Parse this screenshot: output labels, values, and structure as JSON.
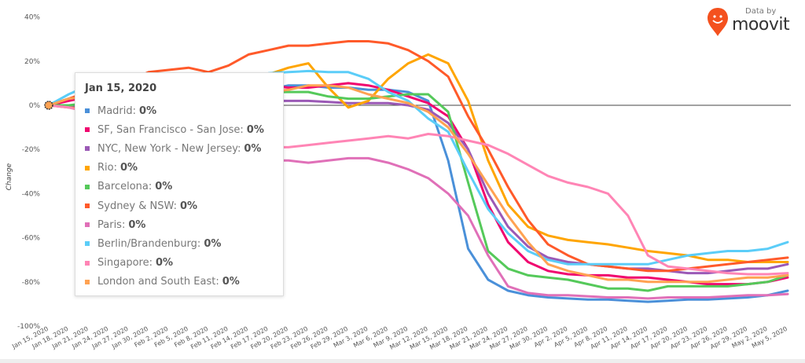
{
  "brand": {
    "prefix": "Data by",
    "name": "moovit",
    "color": "#f4511e"
  },
  "chart_data": {
    "type": "line",
    "title": "",
    "xlabel": "",
    "ylabel": "Change",
    "ylim": [
      -100,
      40
    ],
    "yticks": [
      "40%",
      "20%",
      "0%",
      "-20%",
      "-40%",
      "-60%",
      "-80%",
      "-100%"
    ],
    "ytick_values": [
      40,
      20,
      0,
      -20,
      -40,
      -60,
      -80,
      -100
    ],
    "grid": false,
    "legend": "tooltip",
    "x": [
      "Jan 15, 2020",
      "Jan 18, 2020",
      "Jan 21, 2020",
      "Jan 24, 2020",
      "Jan 27, 2020",
      "Jan 30, 2020",
      "Feb 2, 2020",
      "Feb 5, 2020",
      "Feb 8, 2020",
      "Feb 11, 2020",
      "Feb 14, 2020",
      "Feb 17, 2020",
      "Feb 20, 2020",
      "Feb 23, 2020",
      "Feb 26, 2020",
      "Feb 29, 2020",
      "Mar 3, 2020",
      "Mar 6, 2020",
      "Mar 9, 2020",
      "Mar 12, 2020",
      "Mar 15, 2020",
      "Mar 18, 2020",
      "Mar 21, 2020",
      "Mar 24, 2020",
      "Mar 27, 2020",
      "Mar 30, 2020",
      "Apr 2, 2020",
      "Apr 5, 2020",
      "Apr 8, 2020",
      "Apr 11, 2020",
      "Apr 14, 2020",
      "Apr 17, 2020",
      "Apr 20, 2020",
      "Apr 23, 2020",
      "Apr 26, 2020",
      "Apr 29, 2020",
      "May 2, 2020",
      "May 5, 2020"
    ],
    "series": [
      {
        "name": "Madrid",
        "color": "#4a90d9",
        "values": [
          0,
          3,
          5,
          6,
          6,
          6,
          6,
          6,
          6,
          6,
          6,
          7,
          9,
          9,
          8,
          8,
          7,
          7,
          6,
          2,
          -25,
          -65,
          -79,
          -84,
          -86,
          -87,
          -87.5,
          -88,
          -88,
          -88.5,
          -89,
          -88.5,
          -88,
          -88,
          -87.5,
          -87,
          -86,
          -84
        ]
      },
      {
        "name": "SF, San Francisco - San Jose",
        "color": "#f0066f",
        "values": [
          0,
          2,
          4,
          6,
          8,
          11,
          10,
          8,
          7,
          8,
          9,
          9,
          8,
          8,
          9,
          10,
          9,
          7,
          4,
          1,
          -5,
          -20,
          -45,
          -62,
          -71,
          -75,
          -76.5,
          -77,
          -77,
          -78,
          -78,
          -79,
          -80,
          -81,
          -81,
          -81,
          -80,
          -78
        ]
      },
      {
        "name": "NYC, New York - New Jersey",
        "color": "#9b59b6",
        "values": [
          0,
          0,
          -1,
          0,
          1,
          1,
          1.5,
          2,
          1,
          1,
          1,
          2,
          2,
          2,
          1.5,
          1,
          1,
          1,
          0,
          -2,
          -8,
          -20,
          -40,
          -55,
          -64,
          -69,
          -71,
          -72,
          -73,
          -74,
          -74,
          -75,
          -76,
          -76,
          -75,
          -74,
          -74,
          -72
        ]
      },
      {
        "name": "Rio",
        "color": "#ffa500",
        "values": [
          0,
          -1,
          -2,
          -1,
          0,
          2,
          4,
          6,
          9,
          12,
          13,
          14,
          17,
          19,
          8,
          -1,
          2,
          12,
          19,
          23,
          19,
          2,
          -25,
          -45,
          -55,
          -59,
          -61,
          -62,
          -63,
          -64.5,
          -66,
          -67,
          -68,
          -70,
          -70,
          -71,
          -71,
          -71
        ]
      },
      {
        "name": "Barcelona",
        "color": "#55c95a",
        "values": [
          0,
          0,
          1,
          4,
          10,
          12,
          9,
          7,
          6,
          6,
          6,
          6,
          6,
          6,
          4,
          3,
          3,
          4,
          5,
          5,
          -3,
          -35,
          -66,
          -74,
          -77,
          -78,
          -79,
          -81,
          -83,
          -83,
          -84,
          -82,
          -82,
          -82,
          -82,
          -81,
          -80,
          -77
        ]
      },
      {
        "name": "Sydney & NSW",
        "color": "#ff5a2a",
        "values": [
          0,
          3,
          6,
          8,
          11,
          15,
          16,
          17,
          15,
          18,
          23,
          25,
          27,
          27,
          28,
          29,
          29,
          28,
          25,
          20,
          13,
          -5,
          -20,
          -37,
          -52,
          -63,
          -68,
          -72,
          -73,
          -74,
          -75,
          -75,
          -74,
          -73,
          -72,
          -71,
          -70,
          -69
        ]
      },
      {
        "name": "Paris",
        "color": "#e070b8",
        "values": [
          0,
          -1,
          -3,
          -6,
          -8,
          -10,
          -14,
          -18,
          -21,
          -23,
          -24,
          -25,
          -25,
          -26,
          -25,
          -24,
          -24,
          -26,
          -29,
          -33,
          -40,
          -50,
          -68,
          -82,
          -85,
          -86,
          -86,
          -86.5,
          -87,
          -87,
          -87.5,
          -87,
          -87,
          -87,
          -86.5,
          -86,
          -86,
          -85.5
        ]
      },
      {
        "name": "Berlin/Brandenburg",
        "color": "#5bcdf8",
        "values": [
          0,
          5,
          9,
          12,
          13,
          10,
          7,
          4,
          2.5,
          3,
          9,
          14.5,
          15,
          15.5,
          15,
          15,
          12,
          6,
          2,
          -6,
          -12,
          -30,
          -47,
          -58,
          -66,
          -70,
          -72,
          -72,
          -72,
          -72,
          -72,
          -70,
          -68,
          -67,
          -66,
          -66,
          -65,
          -62
        ]
      },
      {
        "name": "Singapore",
        "color": "#ff85b5",
        "values": [
          0,
          -1,
          -3,
          -4,
          -6,
          -8,
          -10,
          -11,
          -11,
          -11,
          -14,
          -19,
          -19,
          -18,
          -17,
          -16,
          -15,
          -14,
          -15,
          -13,
          -14,
          -16,
          -18,
          -22,
          -27,
          -32,
          -35,
          -37,
          -40,
          -50,
          -68,
          -73,
          -74,
          -75,
          -76,
          -76.5,
          -76.5,
          -76
        ]
      },
      {
        "name": "London and South East",
        "color": "#ffa252",
        "values": [
          0,
          3,
          4,
          5,
          6,
          7,
          8,
          8,
          8,
          7,
          6,
          6,
          7,
          9,
          9,
          8,
          5,
          3,
          1,
          -3,
          -10,
          -22,
          -36,
          -50,
          -62,
          -72,
          -75,
          -77,
          -79,
          -79,
          -80,
          -80,
          -80,
          -80,
          -79,
          -78,
          -78,
          -77
        ]
      }
    ]
  },
  "tooltip": {
    "date": "Jan 15, 2020",
    "rows": [
      {
        "label": "Madrid:",
        "value": "0%"
      },
      {
        "label": "SF, San Francisco - San Jose:",
        "value": "0%"
      },
      {
        "label": "NYC, New York - New Jersey:",
        "value": "0%"
      },
      {
        "label": "Rio:",
        "value": "0%"
      },
      {
        "label": "Barcelona:",
        "value": "0%"
      },
      {
        "label": "Sydney & NSW:",
        "value": "0%"
      },
      {
        "label": "Paris:",
        "value": "0%"
      },
      {
        "label": "Berlin/Brandenburg:",
        "value": "0%"
      },
      {
        "label": "Singapore:",
        "value": "0%"
      },
      {
        "label": "London and South East:",
        "value": "0%"
      }
    ]
  }
}
